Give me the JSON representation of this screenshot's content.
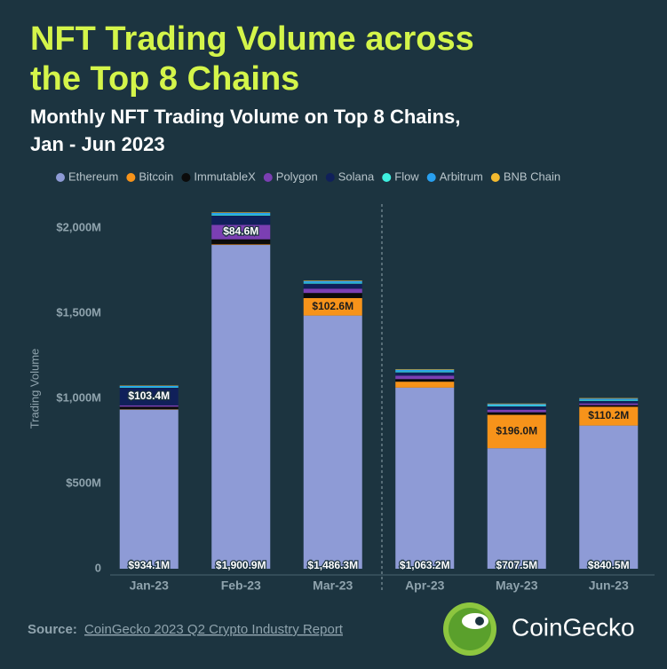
{
  "chart_data": {
    "type": "stacked_bar",
    "title": [
      "NFT Trading Volume across",
      "the Top 8 Chains"
    ],
    "subtitle": [
      "Monthly NFT Trading Volume on Top 8 Chains,",
      "Jan - Jun 2023"
    ],
    "y_label": "Trading Volume",
    "categories": [
      "Jan-23",
      "Feb-23",
      "Mar-23",
      "Apr-23",
      "May-23",
      "Jun-23"
    ],
    "series": [
      {
        "name": "Ethereum",
        "color": "#8e9bd6",
        "values": [
          934.1,
          1900.9,
          1486.3,
          1063.2,
          707.5,
          840.5
        ],
        "value_labels": [
          "$934.1M",
          "$1,900.9M",
          "$1,486.3M",
          "$1,063.2M",
          "$707.5M",
          "$840.5M"
        ]
      },
      {
        "name": "Bitcoin",
        "color": "#f7931a",
        "values": [
          2,
          3,
          102.6,
          35,
          196.0,
          110.2
        ],
        "value_labels": [
          null,
          null,
          "$102.6M",
          null,
          "$196.0M",
          "$110.2M"
        ]
      },
      {
        "name": "ImmutableX",
        "color": "#0b0b0b",
        "values": [
          15,
          30,
          30,
          15,
          15,
          10
        ]
      },
      {
        "name": "Polygon",
        "color": "#7b3fb3",
        "values": [
          8,
          84.6,
          25,
          20,
          15,
          10
        ],
        "value_labels": [
          null,
          "$84.6M",
          null,
          null,
          null,
          null
        ]
      },
      {
        "name": "Solana",
        "color": "#10205a",
        "values": [
          103.4,
          55,
          30,
          20,
          20,
          15
        ],
        "value_labels": [
          "$103.4M",
          null,
          null,
          null,
          null,
          null
        ]
      },
      {
        "name": "Flow",
        "color": "#3ef0e0",
        "values": [
          3,
          5,
          5,
          5,
          5,
          5
        ]
      },
      {
        "name": "Arbitrum",
        "color": "#28a0f0",
        "values": [
          8,
          10,
          10,
          10,
          8,
          8
        ]
      },
      {
        "name": "BNB Chain",
        "color": "#f3ba2f",
        "values": [
          2,
          3,
          3,
          3,
          3,
          3
        ]
      }
    ],
    "ylim": [
      0,
      2000
    ],
    "yticks": [
      0,
      {
        "value": 500,
        "label": "$500M"
      },
      {
        "value": 1000,
        "label": "$1,000M"
      },
      {
        "value": 1500,
        "label": "$1,500M"
      },
      {
        "value": 2000,
        "label": "$2,000M"
      }
    ],
    "source": {
      "label": "Source:",
      "text": "CoinGecko 2023 Q2 Crypto Industry Report"
    },
    "brand": "CoinGecko"
  }
}
